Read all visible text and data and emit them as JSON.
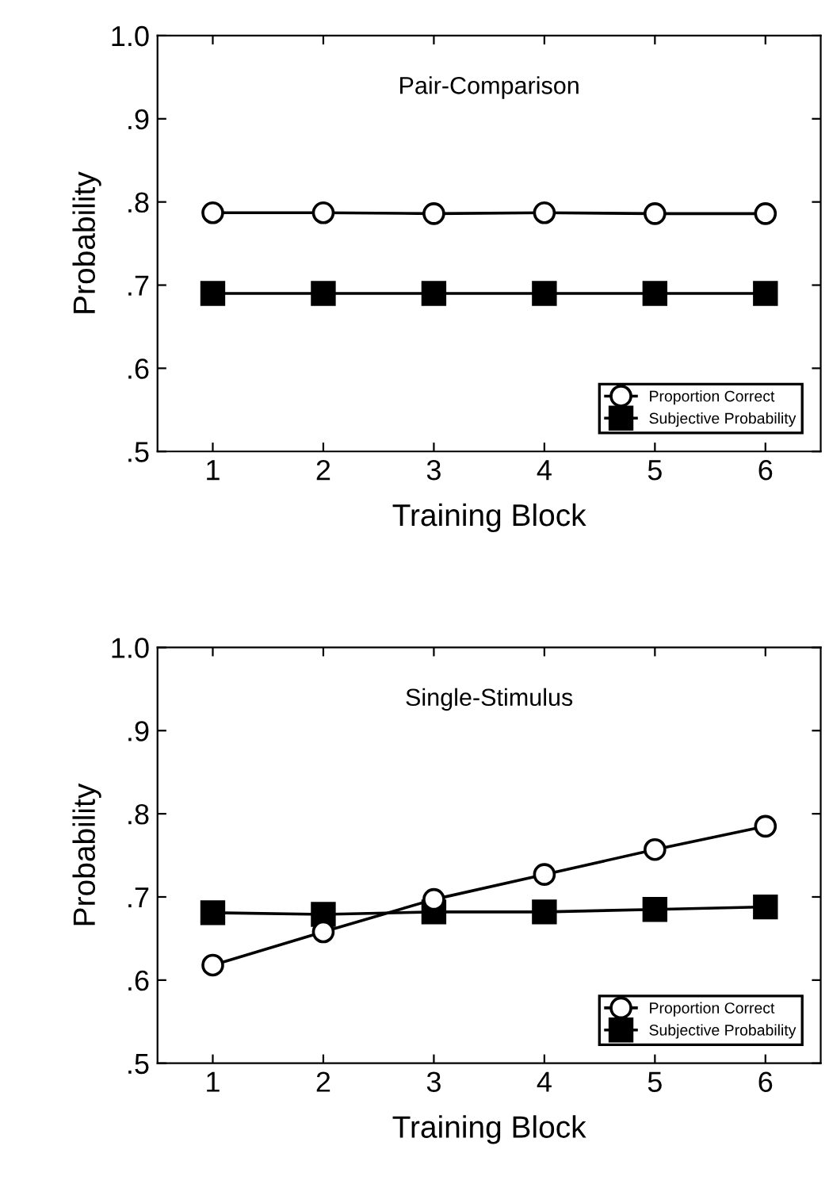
{
  "chart_data": [
    {
      "type": "line",
      "title": "Pair-Comparison",
      "xlabel": "Training Block",
      "ylabel": "Probability",
      "x": [
        1,
        2,
        3,
        4,
        5,
        6
      ],
      "xlim": [
        0.5,
        6.5
      ],
      "xticks": [
        1,
        2,
        3,
        4,
        5,
        6
      ],
      "ylim": [
        0.5,
        1.0
      ],
      "yticks": [
        {
          "value": 0.5,
          "label": ".5"
        },
        {
          "value": 0.6,
          "label": ".6"
        },
        {
          "value": 0.7,
          "label": ".7"
        },
        {
          "value": 0.8,
          "label": ".8"
        },
        {
          "value": 0.9,
          "label": ".9"
        },
        {
          "value": 1.0,
          "label": "1.0"
        }
      ],
      "legend": "bottom right",
      "grid": false,
      "series": [
        {
          "name": "Proportion Correct",
          "color": "#000000",
          "marker": "circle",
          "values": [
            0.787,
            0.787,
            0.786,
            0.787,
            0.786,
            0.786
          ]
        },
        {
          "name": "Subjective Probability",
          "color": "#000000",
          "marker": "square",
          "values": [
            0.69,
            0.69,
            0.69,
            0.69,
            0.69,
            0.69
          ]
        }
      ]
    },
    {
      "type": "line",
      "title": "Single-Stimulus",
      "xlabel": "Training Block",
      "ylabel": "Probability",
      "x": [
        1,
        2,
        3,
        4,
        5,
        6
      ],
      "xlim": [
        0.5,
        6.5
      ],
      "xticks": [
        1,
        2,
        3,
        4,
        5,
        6
      ],
      "ylim": [
        0.5,
        1.0
      ],
      "yticks": [
        {
          "value": 0.5,
          "label": ".5"
        },
        {
          "value": 0.6,
          "label": ".6"
        },
        {
          "value": 0.7,
          "label": ".7"
        },
        {
          "value": 0.8,
          "label": ".8"
        },
        {
          "value": 0.9,
          "label": ".9"
        },
        {
          "value": 1.0,
          "label": "1.0"
        }
      ],
      "legend": "bottom right",
      "grid": false,
      "series": [
        {
          "name": "Proportion Correct",
          "color": "#000000",
          "marker": "circle",
          "values": [
            0.618,
            0.658,
            0.697,
            0.727,
            0.757,
            0.785
          ]
        },
        {
          "name": "Subjective Probability",
          "color": "#000000",
          "marker": "square",
          "values": [
            0.681,
            0.679,
            0.682,
            0.682,
            0.685,
            0.688
          ]
        }
      ]
    }
  ]
}
